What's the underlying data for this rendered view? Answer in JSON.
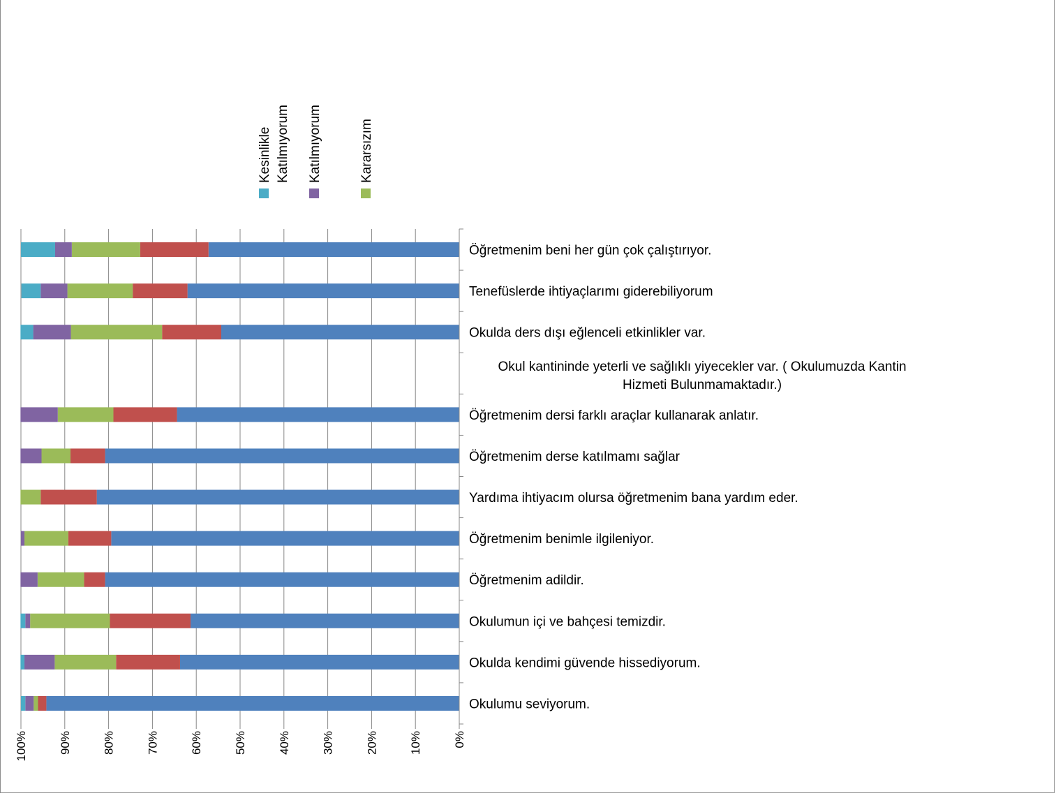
{
  "chart_data": {
    "type": "bar",
    "orientation": "horizontal-stacked-percent",
    "x_axis_reversed": true,
    "xlim": [
      0,
      100
    ],
    "x_ticks": [
      "0%",
      "10%",
      "20%",
      "30%",
      "40%",
      "50%",
      "60%",
      "70%",
      "80%",
      "90%",
      "100%"
    ],
    "grid": true,
    "legend": {
      "placement": "top",
      "entries": [
        {
          "label": "Kesinlikle Katılmıyorum",
          "color": "#4bacc6"
        },
        {
          "label": "Katılmıyorum",
          "color": "#8064a2"
        },
        {
          "label": "Kararsızım",
          "color": "#9bbb59"
        }
      ]
    },
    "categories": [
      "Okulumu seviyorum.",
      "Okulda kendimi güvende hissediyorum.",
      "Okulumun içi ve bahçesi temizdir.",
      "Öğretmenim adildir.",
      "Öğretmenim benimle ilgileniyor.",
      "Yardıma ihtiyacım olursa öğretmenim bana yardım eder.",
      "Öğretmenim derse katılmamı sağlar",
      "Öğretmenim dersi farklı araçlar kullanarak anlatır.",
      "Okul kantininde yeterli ve sağlıklı yiyecekler var. ( Okulumuzda Kantin Hizmeti Bulunmamaktadır.)",
      "Okulda ders dışı eğlenceli etkinlikler var.",
      "Tenefüslerde ihtiyaçlarımı giderebiliyorum",
      "Öğretmenim beni her gün çok çalıştırıyor."
    ],
    "series": [
      {
        "color": "#4f81bd",
        "values": [
          94.2,
          63.7,
          61.3,
          80.8,
          79.4,
          82.7,
          80.8,
          64.4,
          0,
          54.3,
          62.0,
          57.2
        ]
      },
      {
        "color": "#c0504d",
        "values": [
          1.9,
          14.6,
          18.4,
          4.8,
          9.8,
          12.8,
          7.9,
          14.5,
          0,
          13.5,
          12.5,
          15.6
        ]
      },
      {
        "color": "#9bbb59",
        "values": [
          1.0,
          14.0,
          18.2,
          10.6,
          10.0,
          4.6,
          6.6,
          12.7,
          0,
          20.8,
          14.9,
          15.6
        ]
      },
      {
        "color": "#8064a2",
        "values": [
          1.9,
          6.9,
          1.1,
          3.9,
          0.8,
          0,
          4.8,
          8.5,
          0,
          8.6,
          6.1,
          3.8
        ]
      },
      {
        "color": "#4bacc6",
        "values": [
          1.0,
          0.9,
          1.1,
          0,
          0,
          0,
          0,
          0,
          0,
          2.9,
          4.4,
          7.8
        ]
      }
    ]
  }
}
